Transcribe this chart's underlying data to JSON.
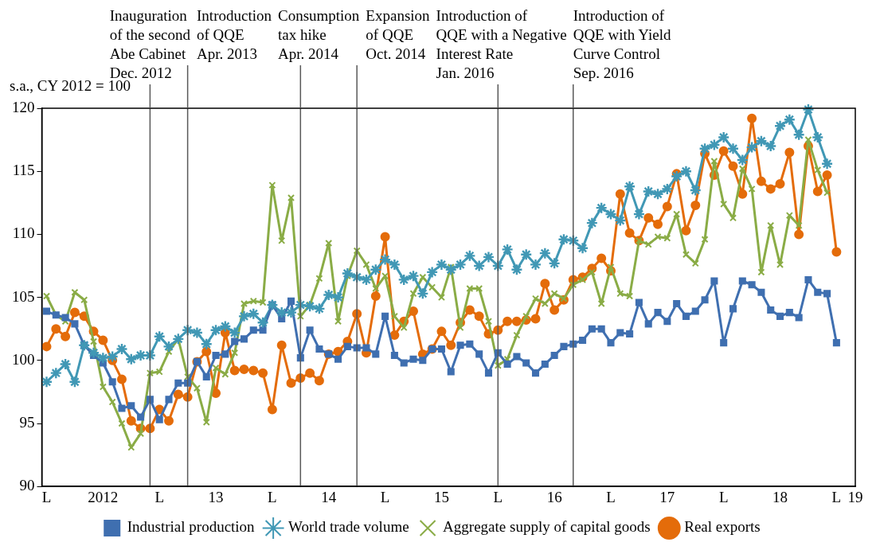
{
  "chart_data": {
    "type": "line",
    "ylabel": "s.a., CY 2012 = 100",
    "x": [
      "2012-01",
      "2012-02",
      "2012-03",
      "2012-04",
      "2012-05",
      "2012-06",
      "2012-07",
      "2012-08",
      "2012-09",
      "2012-10",
      "2012-11",
      "2012-12",
      "2013-01",
      "2013-02",
      "2013-03",
      "2013-04",
      "2013-05",
      "2013-06",
      "2013-07",
      "2013-08",
      "2013-09",
      "2013-10",
      "2013-11",
      "2013-12",
      "2014-01",
      "2014-02",
      "2014-03",
      "2014-04",
      "2014-05",
      "2014-06",
      "2014-07",
      "2014-08",
      "2014-09",
      "2014-10",
      "2014-11",
      "2014-12",
      "2015-01",
      "2015-02",
      "2015-03",
      "2015-04",
      "2015-05",
      "2015-06",
      "2015-07",
      "2015-08",
      "2015-09",
      "2015-10",
      "2015-11",
      "2015-12",
      "2016-01",
      "2016-02",
      "2016-03",
      "2016-04",
      "2016-05",
      "2016-06",
      "2016-07",
      "2016-08",
      "2016-09",
      "2016-10",
      "2016-11",
      "2016-12",
      "2017-01",
      "2017-02",
      "2017-03",
      "2017-04",
      "2017-05",
      "2017-06",
      "2017-07",
      "2017-08",
      "2017-09",
      "2017-10",
      "2017-11",
      "2017-12",
      "2018-01",
      "2018-02",
      "2018-03",
      "2018-04",
      "2018-05",
      "2018-06",
      "2018-07",
      "2018-08",
      "2018-09",
      "2018-10",
      "2018-11",
      "2018-12",
      "2019-01"
    ],
    "series": [
      {
        "name": "Industrial production",
        "color": "#3f6fb0",
        "marker": "square",
        "values": [
          103.9,
          103.6,
          103.4,
          102.9,
          101.2,
          100.4,
          99.8,
          98.3,
          96.2,
          96.4,
          95.5,
          96.9,
          95.3,
          96.9,
          98.2,
          98.2,
          99.9,
          98.7,
          100.4,
          100.5,
          101.5,
          101.7,
          102.4,
          102.4,
          104.4,
          103.3,
          104.7,
          100.2,
          102.4,
          100.9,
          100.5,
          100.1,
          101.1,
          101.0,
          101.0,
          100.5,
          103.5,
          100.4,
          99.8,
          100.1,
          100.0,
          100.9,
          100.9,
          99.1,
          101.2,
          101.3,
          100.5,
          99.0,
          100.6,
          99.7,
          100.3,
          99.8,
          99.0,
          99.7,
          100.4,
          101.1,
          101.3,
          101.6,
          102.5,
          102.5,
          101.4,
          102.2,
          102.1,
          104.6,
          102.9,
          103.8,
          103.1,
          104.5,
          103.5,
          103.9,
          104.8,
          106.3,
          101.4,
          104.1,
          106.3,
          106.0,
          105.4,
          104.0,
          103.5,
          103.8,
          103.4,
          106.4,
          105.4,
          105.3,
          101.4
        ]
      },
      {
        "name": "World trade volume",
        "color": "#4198b5",
        "marker": "star",
        "values": [
          98.3,
          99.0,
          99.7,
          98.3,
          101.2,
          100.6,
          100.2,
          100.3,
          100.9,
          100.1,
          100.4,
          100.4,
          101.9,
          101.1,
          101.7,
          102.4,
          102.2,
          101.3,
          102.4,
          102.7,
          102.2,
          103.5,
          103.7,
          103.0,
          104.4,
          103.8,
          103.8,
          104.4,
          104.3,
          104.1,
          105.2,
          105.0,
          106.9,
          106.6,
          106.4,
          107.2,
          108.0,
          107.6,
          106.4,
          106.7,
          105.3,
          107.0,
          107.6,
          107.2,
          107.6,
          108.3,
          107.5,
          108.2,
          107.5,
          108.8,
          107.2,
          108.4,
          107.6,
          108.5,
          107.7,
          109.6,
          109.5,
          108.9,
          110.9,
          112.1,
          111.6,
          111.1,
          113.8,
          111.6,
          113.4,
          113.2,
          113.6,
          114.6,
          115.0,
          113.5,
          116.8,
          117.1,
          117.7,
          116.8,
          115.9,
          116.9,
          117.4,
          117.0,
          118.6,
          119.1,
          117.9,
          119.9,
          117.7,
          115.6,
          null
        ]
      },
      {
        "name": "Aggregate supply of capital goods",
        "color": "#8aac46",
        "marker": "cross",
        "values": [
          105.1,
          103.6,
          103.1,
          105.4,
          104.8,
          101.5,
          97.9,
          96.7,
          95.0,
          93.1,
          94.2,
          99.0,
          99.1,
          100.7,
          101.7,
          98.7,
          97.8,
          95.1,
          99.4,
          98.9,
          100.6,
          104.5,
          104.7,
          104.6,
          113.9,
          109.5,
          112.9,
          103.5,
          104.4,
          106.5,
          109.3,
          103.1,
          106.7,
          108.7,
          107.6,
          105.7,
          106.7,
          103.5,
          102.6,
          105.3,
          106.6,
          105.8,
          105.0,
          107.4,
          102.6,
          105.7,
          105.7,
          103.1,
          99.6,
          100.1,
          102.0,
          103.5,
          104.9,
          104.5,
          105.3,
          104.9,
          106.0,
          106.4,
          107.0,
          104.5,
          107.4,
          105.3,
          105.1,
          109.5,
          109.2,
          109.8,
          109.7,
          111.6,
          108.4,
          107.7,
          109.6,
          115.8,
          112.4,
          111.3,
          115.2,
          113.6,
          107.0,
          110.7,
          107.6,
          111.5,
          110.7,
          117.5,
          115.1,
          113.3,
          null
        ]
      },
      {
        "name": "Real exports",
        "color": "#e46c0a",
        "marker": "circle",
        "values": [
          101.1,
          102.5,
          101.9,
          103.8,
          103.5,
          102.3,
          101.6,
          100.0,
          98.5,
          95.2,
          94.6,
          94.6,
          96.1,
          95.2,
          97.3,
          97.1,
          99.9,
          100.7,
          97.4,
          102.2,
          99.2,
          99.3,
          99.2,
          99.0,
          96.1,
          101.2,
          98.2,
          98.6,
          99.0,
          98.4,
          100.5,
          100.7,
          101.5,
          103.7,
          100.6,
          105.1,
          109.8,
          102.0,
          103.1,
          103.9,
          100.5,
          100.9,
          102.3,
          101.2,
          103.0,
          104.0,
          103.5,
          102.1,
          102.4,
          103.1,
          103.1,
          103.2,
          103.3,
          106.1,
          104.0,
          104.8,
          106.4,
          106.6,
          107.3,
          108.1,
          107.1,
          113.2,
          110.1,
          109.5,
          111.3,
          110.8,
          112.2,
          114.8,
          110.3,
          112.3,
          116.4,
          114.7,
          116.6,
          115.4,
          113.2,
          119.2,
          114.2,
          113.6,
          114.0,
          116.5,
          110.0,
          117.0,
          113.4,
          114.7,
          108.6
        ]
      }
    ],
    "xlim": [
      "2011-12-16",
      "2019-03"
    ],
    "xticks": [
      {
        "value": "2012-01",
        "label": "L"
      },
      {
        "value": "2012-07",
        "label": "2012"
      },
      {
        "value": "2013-01",
        "label": "L"
      },
      {
        "value": "2013-07",
        "label": "13"
      },
      {
        "value": "2014-01",
        "label": "L"
      },
      {
        "value": "2014-07",
        "label": "14"
      },
      {
        "value": "2015-01",
        "label": "L"
      },
      {
        "value": "2015-07",
        "label": "15"
      },
      {
        "value": "2016-01",
        "label": "L"
      },
      {
        "value": "2016-07",
        "label": "16"
      },
      {
        "value": "2017-01",
        "label": "L"
      },
      {
        "value": "2017-07",
        "label": "17"
      },
      {
        "value": "2018-01",
        "label": "L"
      },
      {
        "value": "2018-07",
        "label": "18"
      },
      {
        "value": "2019-01",
        "label": "L"
      },
      {
        "value": "2019-03",
        "label": "19"
      }
    ],
    "ylim": [
      90,
      120
    ],
    "yticks": [
      90,
      95,
      100,
      105,
      110,
      115,
      120
    ],
    "ref_lines": [
      {
        "axis": "x",
        "value": "2012-12",
        "color": "#595959",
        "label": "Inauguration\nof the second\nAbe Cabinet\nDec. 2012"
      },
      {
        "axis": "x",
        "value": "2013-04",
        "color": "#595959",
        "label": "Introduction\nof QQE\nApr. 2013"
      },
      {
        "axis": "x",
        "value": "2014-04",
        "color": "#595959",
        "label": "Consumption\ntax hike\nApr. 2014"
      },
      {
        "axis": "x",
        "value": "2014-10",
        "color": "#595959",
        "label": "Expansion\nof QQE\nOct. 2014"
      },
      {
        "axis": "x",
        "value": "2016-01",
        "color": "#595959",
        "label": "Introduction of\nQQE with a Negative\nInterest Rate\nJan. 2016"
      },
      {
        "axis": "x",
        "value": "2016-09",
        "color": "#595959",
        "label": "Introduction of\nQQE with Yield\nCurve Control\nSep. 2016"
      }
    ],
    "grid": false,
    "legend": "bottom"
  }
}
